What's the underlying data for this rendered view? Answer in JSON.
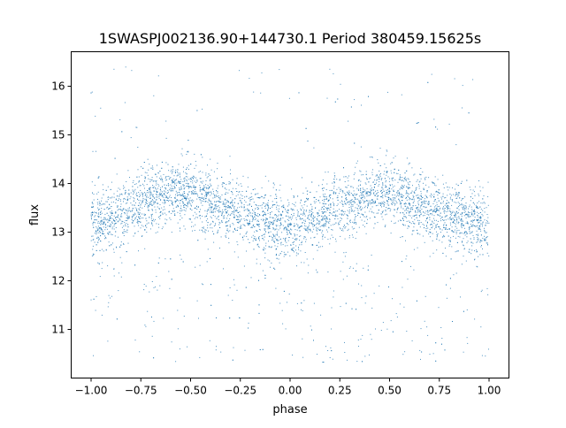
{
  "chart_data": {
    "type": "scatter",
    "title": "1SWASPJ002136.90+144730.1 Period 380459.15625s",
    "xlabel": "phase",
    "ylabel": "flux",
    "xlim": [
      -1.1,
      1.1
    ],
    "ylim": [
      10.0,
      16.71
    ],
    "xticks": [
      "-1.00",
      "-0.75",
      "-0.50",
      "-0.25",
      "0.00",
      "0.25",
      "0.50",
      "0.75",
      "1.00"
    ],
    "xtick_values": [
      -1.0,
      -0.75,
      -0.5,
      -0.25,
      0.0,
      0.25,
      0.5,
      0.75,
      1.0
    ],
    "yticks": [
      "11",
      "12",
      "13",
      "14",
      "15",
      "16"
    ],
    "ytick_values": [
      11,
      12,
      13,
      14,
      15,
      16
    ],
    "grid": false,
    "marker_color": "#1f77b4",
    "phase_range": [
      -1.0,
      1.0
    ],
    "binned_median_flux": {
      "phase": [
        -1.0,
        -0.9,
        -0.75,
        -0.6,
        -0.5,
        -0.4,
        -0.25,
        -0.1,
        0.0,
        0.1,
        0.25,
        0.4,
        0.5,
        0.6,
        0.75,
        0.9,
        1.0
      ],
      "flux": [
        13.1,
        13.3,
        13.6,
        13.8,
        13.8,
        13.6,
        13.4,
        13.2,
        13.1,
        13.2,
        13.5,
        13.8,
        13.8,
        13.6,
        13.4,
        13.2,
        13.1
      ]
    },
    "scatter_sigma": 0.33,
    "low_outlier_flux_range": [
      10.3,
      12.6
    ],
    "high_outlier_flux_range": [
      14.5,
      16.4
    ]
  }
}
